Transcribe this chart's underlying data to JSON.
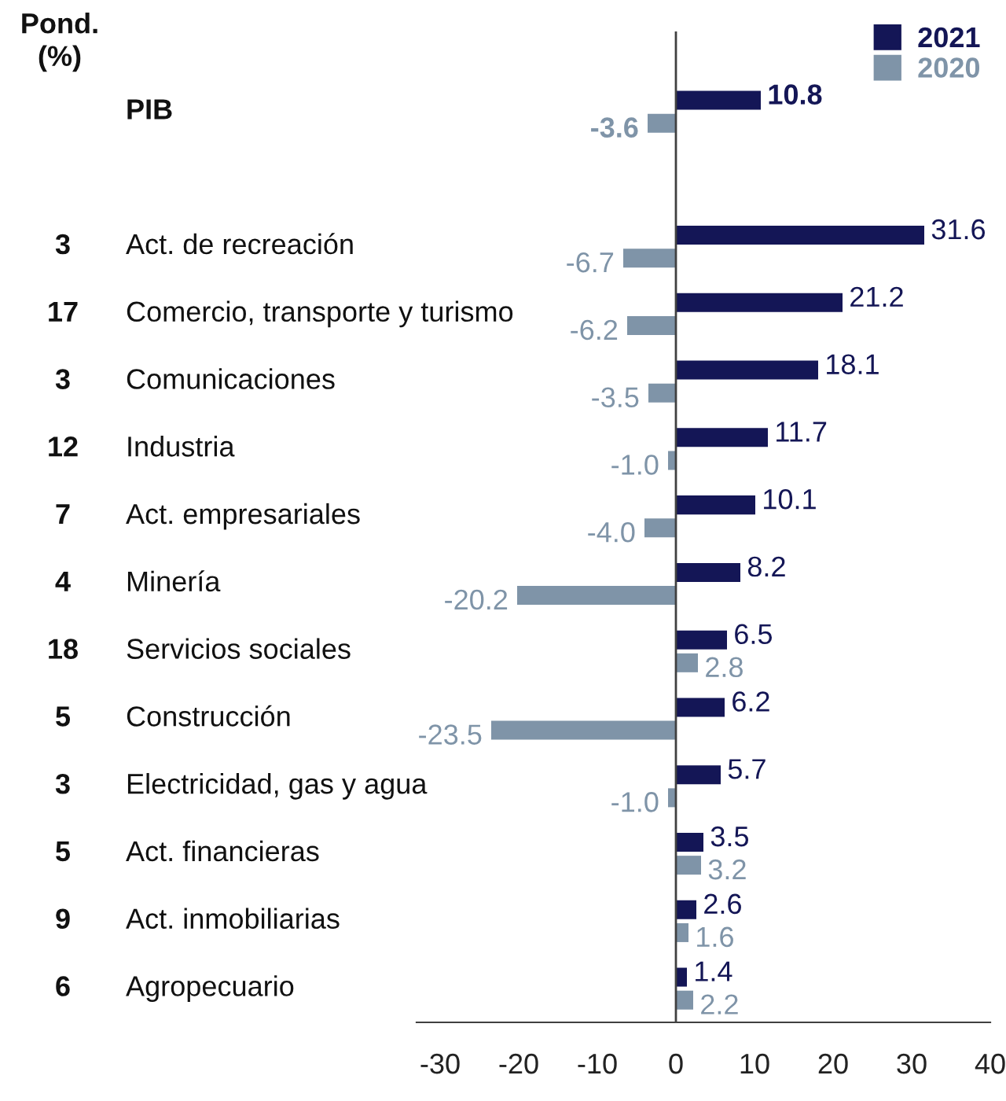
{
  "chart_data": {
    "type": "bar",
    "orientation": "horizontal",
    "categories": [
      "PIB",
      null,
      "Act. de recreación",
      "Comercio, transporte y turismo",
      "Comunicaciones",
      "Industria",
      "Act. empresariales",
      "Minería",
      "Servicios sociales",
      "Construcción",
      "Electricidad, gas y agua",
      "Act. financieras",
      "Act. inmobiliarias",
      "Agropecuario"
    ],
    "series": [
      {
        "name": "2021",
        "color": "#141656",
        "values": [
          10.8,
          null,
          31.6,
          21.2,
          18.1,
          11.7,
          10.1,
          8.2,
          6.5,
          6.2,
          5.7,
          3.5,
          2.6,
          1.4
        ],
        "value_labels": [
          "10.8",
          null,
          "31.6",
          "21.2",
          "18.1",
          "11.7",
          "10.1",
          "8.2",
          "6.5",
          "6.2",
          "5.7",
          "3.5",
          "2.6",
          "1.4"
        ]
      },
      {
        "name": "2020",
        "color": "#7f94a8",
        "values": [
          -3.6,
          null,
          -6.7,
          -6.2,
          -3.5,
          -1.0,
          -4.0,
          -20.2,
          2.8,
          -23.5,
          -1.0,
          3.2,
          1.6,
          2.2
        ],
        "value_labels": [
          "-3.6",
          null,
          "-6.7",
          "-6.2",
          "-3.5",
          "-1.0",
          "-4.0",
          "-20.2",
          "2.8",
          "-23.5",
          "-1.0",
          "3.2",
          "1.6",
          "2.2"
        ]
      }
    ],
    "xlim": [
      -33,
      40
    ],
    "xticks": [
      -30,
      -20,
      -10,
      0,
      10,
      20,
      30,
      40
    ],
    "ref_lines": [
      {
        "axis": "x",
        "value": 0,
        "color": "#404040"
      }
    ],
    "legend": "top right",
    "grid": false,
    "annotations": [
      "Pond.\n(%)",
      "3",
      "17",
      "3",
      "12",
      "7",
      "4",
      "18",
      "5",
      "3",
      "5",
      "9",
      "6"
    ]
  }
}
